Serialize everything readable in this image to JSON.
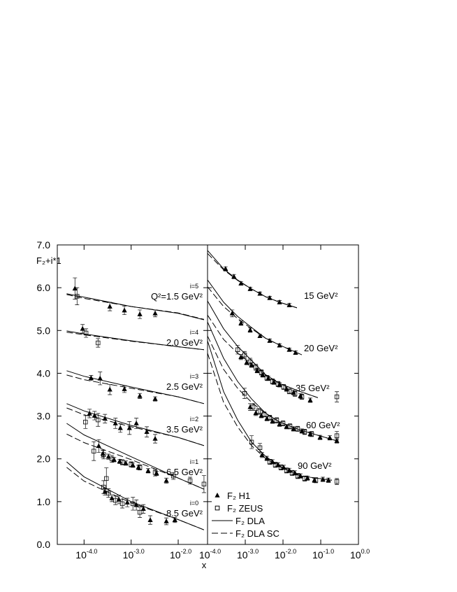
{
  "chart_data": [
    {
      "type": "scatter",
      "y_label": "F₂+i*1",
      "x_label": "x",
      "log_x": true,
      "xlim": [
        2.7e-05,
        0.042
      ],
      "ylim": [
        0,
        7
      ],
      "xticks": [
        {
          "value": 0.0001,
          "label": "10",
          "sup": "-4.0"
        },
        {
          "value": 0.001,
          "label": "10",
          "sup": "-3.0"
        },
        {
          "value": 0.01,
          "label": "10",
          "sup": "-2.0"
        }
      ],
      "yticks": [
        {
          "value": 0,
          "label": "0.0"
        },
        {
          "value": 1,
          "label": "1.0"
        },
        {
          "value": 2,
          "label": "2.0"
        },
        {
          "value": 3,
          "label": "3.0"
        },
        {
          "value": 4,
          "label": "4.0"
        },
        {
          "value": 5,
          "label": "5.0"
        },
        {
          "value": 6,
          "label": "6.0"
        },
        {
          "value": 7,
          "label": "7.0"
        }
      ],
      "curve_labels": [
        {
          "index": "i=5",
          "text": "Q²=1.5 GeV²"
        },
        {
          "index": "i=4",
          "text": "2.0 GeV²"
        },
        {
          "index": "i=3",
          "text": "2.5 GeV²"
        },
        {
          "index": "i=2",
          "text": "3.5 GeV²"
        },
        {
          "index": "i=1",
          "text": "6.5 GeV²"
        },
        {
          "index": "i=0",
          "text": "8.5 GeV²"
        }
      ],
      "series": [
        {
          "kind": "marker",
          "marker": "triangle",
          "color": "#000000",
          "x": [
            6.4e-05,
            0.000353,
            0.00072,
            0.00153,
            0.00324,
            9.3e-05,
            0.000141,
            0.000219,
            0.000353,
            0.00072,
            0.00153,
            0.00324,
            0.000131,
            0.000167,
            0.000278,
            0.000464,
            0.00059,
            0.00092,
            0.00129,
            0.00215,
            0.00324,
            0.000205,
            0.000251,
            0.00033,
            0.000434,
            0.00057,
            0.00077,
            0.00109,
            0.00143,
            0.0023,
            0.00347,
            0.0056,
            0.000278,
            0.00039,
            0.00055,
            0.00083,
            0.00129,
            0.00182,
            0.00255,
            0.0056,
            0.0085
          ],
          "values": [
            5.98,
            5.56,
            5.47,
            5.38,
            5.4,
            5.04,
            3.89,
            3.88,
            3.62,
            3.63,
            3.47,
            3.4,
            3.06,
            3.01,
            2.94,
            2.83,
            2.72,
            2.72,
            2.83,
            2.63,
            2.47,
            2.3,
            2.12,
            2.05,
            1.98,
            1.94,
            1.9,
            1.85,
            1.8,
            1.72,
            1.66,
            1.49,
            1.23,
            1.08,
            1.05,
            0.98,
            0.92,
            0.83,
            0.57,
            0.54,
            0.57
          ],
          "errors": [
            0.25,
            0.1,
            0.1,
            0.1,
            0.08,
            0.1,
            0.06,
            0.15,
            0.12,
            0.08,
            0.06,
            0.05,
            0.1,
            0.1,
            0.1,
            0.12,
            0.1,
            0.15,
            0.12,
            0.12,
            0.1,
            0.15,
            0.08,
            0.06,
            0.05,
            0.05,
            0.05,
            0.05,
            0.05,
            0.05,
            0.05,
            0.06,
            0.08,
            0.08,
            0.1,
            0.1,
            0.12,
            0.1,
            0.1,
            0.08,
            0.06
          ]
        },
        {
          "kind": "marker",
          "marker": "square",
          "color": "#000000",
          "x": [
            7.1e-05,
            0.00011,
            0.000198,
            0.000107,
            0.000198,
            0.000161,
            0.00026,
            0.00039,
            0.00065,
            0.001,
            0.00153,
            0.00324,
            0.0079,
            0.0179,
            0.0353,
            0.00026,
            0.000298,
            0.00033,
            0.000464,
            0.00065,
            0.00109,
            0.00153
          ],
          "values": [
            5.8,
            4.94,
            4.71,
            2.86,
            2.91,
            2.18,
            2.1,
            2.0,
            1.92,
            1.87,
            1.8,
            1.68,
            1.6,
            1.49,
            1.41,
            1.34,
            1.54,
            1.2,
            1.03,
            0.95,
            0.95,
            0.75
          ],
          "errors": [
            0.2,
            0.1,
            0.1,
            0.15,
            0.15,
            0.22,
            0.1,
            0.08,
            0.06,
            0.06,
            0.06,
            0.08,
            0.08,
            0.08,
            0.2,
            0.15,
            0.25,
            0.1,
            0.1,
            0.1,
            0.15,
            0.12
          ]
        },
        {
          "kind": "line",
          "linestyle": "solid",
          "color": "#000000",
          "x": [
            4.27e-05,
            0.0001,
            0.001,
            0.01,
            0.0353,
            null,
            4.27e-05,
            0.0001,
            0.001,
            0.01,
            0.0353,
            null,
            4.27e-05,
            0.0001,
            0.001,
            0.01,
            0.0353,
            null,
            4.27e-05,
            0.0001,
            0.001,
            0.01,
            0.0353,
            null,
            4.27e-05,
            0.0001,
            0.001,
            0.01,
            0.0353,
            null,
            4.27e-05,
            0.0001,
            0.001,
            0.01,
            0.0353
          ],
          "values": [
            5.86,
            5.78,
            5.56,
            5.4,
            5.25,
            null,
            4.99,
            4.92,
            4.76,
            4.62,
            4.55,
            null,
            4.06,
            3.93,
            3.68,
            3.45,
            3.29,
            null,
            3.29,
            3.12,
            2.78,
            2.5,
            2.31,
            null,
            2.83,
            2.56,
            2.05,
            1.55,
            1.29,
            null,
            1.93,
            1.58,
            1.0,
            0.58,
            0.34
          ]
        },
        {
          "kind": "line",
          "linestyle": "dashed",
          "color": "#000000",
          "x": [
            4.27e-05,
            0.0001,
            0.001,
            0.01,
            0.0353,
            null,
            4.27e-05,
            0.0001,
            0.001,
            0.01,
            0.0353,
            null,
            4.27e-05,
            0.0001,
            0.001,
            0.01,
            0.0353,
            null,
            4.27e-05,
            0.0001,
            0.001,
            0.01,
            0.0353,
            null,
            4.27e-05,
            0.0001,
            0.001,
            0.01,
            0.0353,
            null,
            4.27e-05,
            0.0001,
            0.001,
            0.01,
            0.0353
          ],
          "values": [
            5.84,
            5.75,
            5.56,
            5.41,
            5.26,
            null,
            4.96,
            4.9,
            4.75,
            4.62,
            4.55,
            null,
            3.96,
            3.85,
            3.65,
            3.45,
            3.29,
            null,
            3.19,
            3.03,
            2.75,
            2.5,
            2.31,
            null,
            2.58,
            2.38,
            1.98,
            1.55,
            1.29,
            null,
            1.8,
            1.48,
            0.97,
            0.58,
            0.34
          ]
        }
      ]
    },
    {
      "type": "scatter",
      "log_x": true,
      "xlim": [
        0.0001,
        1
      ],
      "ylim": [
        0,
        7
      ],
      "legend": "lower left",
      "xticks": [
        {
          "value": 0.0001,
          "label": "10",
          "sup": "-4.0"
        },
        {
          "value": 0.001,
          "label": "10",
          "sup": "-3.0"
        },
        {
          "value": 0.01,
          "label": "10",
          "sup": "-2.0"
        },
        {
          "value": 0.1,
          "label": "10",
          "sup": "-1.0"
        },
        {
          "value": 1,
          "label": "10",
          "sup": "0.0"
        }
      ],
      "curve_labels": [
        {
          "text": "15 GeV²"
        },
        {
          "text": "20 GeV²"
        },
        {
          "text": "35 GeV²"
        },
        {
          "text": "60 GeV²"
        },
        {
          "text": "90 GeV²"
        }
      ],
      "series": [
        {
          "name": "F₂ H1",
          "kind": "marker",
          "marker": "triangle",
          "color": "#000000",
          "x": [
            0.0003,
            0.0005,
            0.00077,
            0.00135,
            0.00245,
            0.00445,
            0.0081,
            0.0147,
            0.00045,
            0.00077,
            0.00135,
            0.00245,
            0.00445,
            0.0081,
            0.0147,
            0.0215,
            0.00077,
            0.00109,
            0.00147,
            0.00207,
            0.0029,
            0.00408,
            0.00574,
            0.0081,
            0.0124,
            0.019,
            0.029,
            0.0527,
            0.00135,
            0.0019,
            0.00267,
            0.00375,
            0.00527,
            0.0081,
            0.0124,
            0.019,
            0.0316,
            0.0527,
            0.096,
            0.174,
            0.267,
            0.00278,
            0.00375,
            0.00527,
            0.0074,
            0.0104,
            0.0147,
            0.0207,
            0.029,
            0.0445,
            0.068,
            0.114,
            0.16
          ],
          "values": [
            6.44,
            6.26,
            6.1,
            5.97,
            5.86,
            5.76,
            5.66,
            5.59,
            5.4,
            5.17,
            5.01,
            4.87,
            4.76,
            4.65,
            4.55,
            4.48,
            4.38,
            4.25,
            4.19,
            4.06,
            3.96,
            3.88,
            3.79,
            3.73,
            3.63,
            3.55,
            3.47,
            3.37,
            3.21,
            3.07,
            3.01,
            2.94,
            2.88,
            2.81,
            2.75,
            2.7,
            2.65,
            2.58,
            2.5,
            2.49,
            2.42,
            2.09,
            2.01,
            1.93,
            1.86,
            1.8,
            1.73,
            1.67,
            1.6,
            1.55,
            1.5,
            1.52,
            1.5
          ],
          "errors": [
            0.05,
            0.05,
            0.04,
            0.04,
            0.04,
            0.04,
            0.04,
            0.04,
            0.08,
            0.05,
            0.05,
            0.04,
            0.04,
            0.04,
            0.04,
            0.04,
            0.06,
            0.05,
            0.05,
            0.05,
            0.05,
            0.05,
            0.05,
            0.05,
            0.05,
            0.05,
            0.05,
            0.05,
            0.08,
            0.06,
            0.05,
            0.05,
            0.05,
            0.05,
            0.05,
            0.05,
            0.05,
            0.05,
            0.05,
            0.05,
            0.05,
            0.06,
            0.05,
            0.05,
            0.05,
            0.05,
            0.05,
            0.05,
            0.05,
            0.05,
            0.05,
            0.05,
            0.05
          ]
        },
        {
          "name": "F₂ ZEUS",
          "kind": "marker",
          "marker": "square",
          "color": "#000000",
          "x": [
            0.00063,
            0.00096,
            0.00135,
            0.0019,
            0.00267,
            0.00375,
            0.00527,
            0.0074,
            0.0104,
            0.0147,
            0.0207,
            0.0316,
            0.267,
            0.00096,
            0.0016,
            0.00225,
            0.00316,
            0.00445,
            0.00681,
            0.01,
            0.0153,
            0.0245,
            0.0375,
            0.0574,
            0.267,
            0.00147,
            0.00245,
            0.00445,
            0.00625,
            0.0088,
            0.0124,
            0.0174,
            0.0245,
            0.0375,
            0.074,
            0.267
          ],
          "values": [
            4.55,
            4.43,
            4.27,
            4.14,
            4.02,
            3.89,
            3.81,
            3.75,
            3.68,
            3.58,
            3.52,
            3.45,
            3.45,
            3.53,
            3.21,
            3.11,
            3.04,
            2.96,
            2.9,
            2.83,
            2.76,
            2.7,
            2.63,
            2.58,
            2.54,
            2.39,
            2.26,
            1.93,
            1.86,
            1.8,
            1.73,
            1.67,
            1.6,
            1.54,
            1.5,
            1.47
          ],
          "errors": [
            0.1,
            0.08,
            0.08,
            0.07,
            0.06,
            0.06,
            0.06,
            0.06,
            0.06,
            0.06,
            0.06,
            0.06,
            0.12,
            0.12,
            0.08,
            0.07,
            0.06,
            0.06,
            0.06,
            0.06,
            0.06,
            0.06,
            0.06,
            0.06,
            0.1,
            0.15,
            0.1,
            0.06,
            0.06,
            0.06,
            0.06,
            0.06,
            0.06,
            0.06,
            0.06,
            0.07
          ]
        },
        {
          "name": "F₂ DLA",
          "kind": "line",
          "linestyle": "solid",
          "color": "#000000",
          "x": [
            0.0001,
            0.000267,
            0.000625,
            0.00147,
            0.00344,
            0.0081,
            0.0234,
            null,
            0.0001,
            0.000267,
            0.000625,
            0.00147,
            0.00344,
            0.0081,
            0.0316,
            null,
            0.0001,
            0.000267,
            0.000625,
            0.00147,
            0.00344,
            0.0081,
            0.029,
            0.084,
            null,
            0.0001,
            0.000267,
            0.000625,
            0.00147,
            0.00344,
            0.0081,
            0.029,
            0.267,
            null,
            0.0001,
            0.000267,
            0.000625,
            0.00147,
            0.00344,
            0.0081,
            0.029,
            0.198
          ],
          "values": [
            6.87,
            6.44,
            6.18,
            5.97,
            5.79,
            5.66,
            5.53,
            null,
            6.18,
            5.66,
            5.33,
            5.07,
            4.82,
            4.66,
            4.43,
            null,
            5.69,
            5.04,
            4.63,
            4.3,
            3.97,
            3.76,
            3.57,
            3.43,
            null,
            5.2,
            4.35,
            3.81,
            3.4,
            3.07,
            2.86,
            2.67,
            2.42,
            null,
            4.76,
            3.57,
            2.91,
            2.39,
            2.06,
            1.83,
            1.6,
            1.5
          ]
        },
        {
          "name": "F₂ DLA SC",
          "kind": "line",
          "linestyle": "dashed",
          "color": "#000000",
          "x": [
            0.0001,
            0.000267,
            0.000625,
            0.00147,
            0.00344,
            0.0081,
            0.0234,
            null,
            0.0001,
            0.000267,
            0.000625,
            0.00147,
            0.00344,
            0.0081,
            0.0316,
            null,
            0.0001,
            0.000267,
            0.000625,
            0.00147,
            0.00344,
            0.0081,
            0.029,
            0.084,
            null,
            0.0001,
            0.000267,
            0.000625,
            0.00147,
            0.00344,
            0.0081,
            0.029,
            0.267,
            null,
            0.0001,
            0.000267,
            0.000625,
            0.00147,
            0.00344,
            0.0081,
            0.029,
            0.198
          ],
          "values": [
            6.8,
            6.42,
            6.17,
            5.97,
            5.79,
            5.66,
            5.53,
            null,
            6.02,
            5.56,
            5.28,
            5.04,
            4.82,
            4.66,
            4.43,
            null,
            5.36,
            4.79,
            4.47,
            4.22,
            3.96,
            3.76,
            3.57,
            3.43,
            null,
            4.87,
            4.09,
            3.65,
            3.32,
            3.06,
            2.86,
            2.67,
            2.42,
            null,
            4.47,
            3.32,
            2.75,
            2.31,
            2.01,
            1.82,
            1.6,
            1.5
          ]
        }
      ]
    }
  ]
}
